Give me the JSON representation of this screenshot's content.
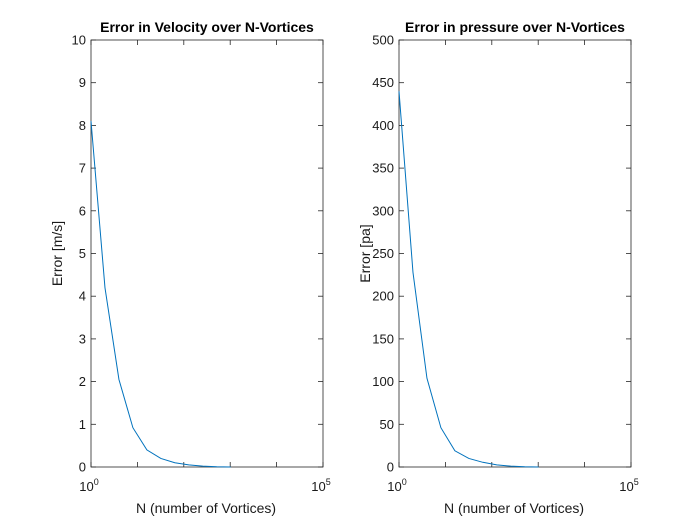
{
  "chart_data": [
    {
      "type": "line",
      "title": "Error in Velocity over N-Vortices",
      "xlabel": "N (number of Vortices)",
      "ylabel": "Error [m/s]",
      "xscale": "log",
      "xlim": [
        1,
        100000
      ],
      "xticks": [
        1,
        100000
      ],
      "xtick_labels": [
        {
          "base": "10",
          "exp": "0"
        },
        {
          "base": "10",
          "exp": "5"
        }
      ],
      "ylim": [
        0,
        10
      ],
      "yticks": [
        0,
        1,
        2,
        3,
        4,
        5,
        6,
        7,
        8,
        9,
        10
      ],
      "ytick_labels": [
        "0",
        "1",
        "2",
        "3",
        "4",
        "5",
        "6",
        "7",
        "8",
        "9",
        "10"
      ],
      "grid": false,
      "color": "#0072BD",
      "series": [
        {
          "x": [
            1,
            2,
            4,
            8,
            16,
            32,
            64,
            128,
            256,
            512,
            1024
          ],
          "y": [
            8.1,
            4.2,
            2.05,
            0.92,
            0.4,
            0.2,
            0.1,
            0.05,
            0.02,
            0.005,
            0.0
          ]
        }
      ]
    },
    {
      "type": "line",
      "title": "Error in pressure over N-Vortices",
      "xlabel": "N (number of Vortices)",
      "ylabel": "Error [pa]",
      "xscale": "log",
      "xlim": [
        1,
        100000
      ],
      "xticks": [
        1,
        100000
      ],
      "xtick_labels": [
        {
          "base": "10",
          "exp": "0"
        },
        {
          "base": "10",
          "exp": "5"
        }
      ],
      "ylim": [
        0,
        500
      ],
      "yticks": [
        0,
        50,
        100,
        150,
        200,
        250,
        300,
        350,
        400,
        450,
        500
      ],
      "ytick_labels": [
        "0",
        "50",
        "100",
        "150",
        "200",
        "250",
        "300",
        "350",
        "400",
        "450",
        "500"
      ],
      "grid": false,
      "color": "#0072BD",
      "series": [
        {
          "x": [
            1,
            2,
            4,
            8,
            16,
            32,
            64,
            128,
            256,
            512,
            1024
          ],
          "y": [
            440,
            228,
            104,
            46,
            19,
            10,
            5.5,
            2.5,
            1.0,
            0.3,
            0.0
          ]
        }
      ]
    }
  ]
}
